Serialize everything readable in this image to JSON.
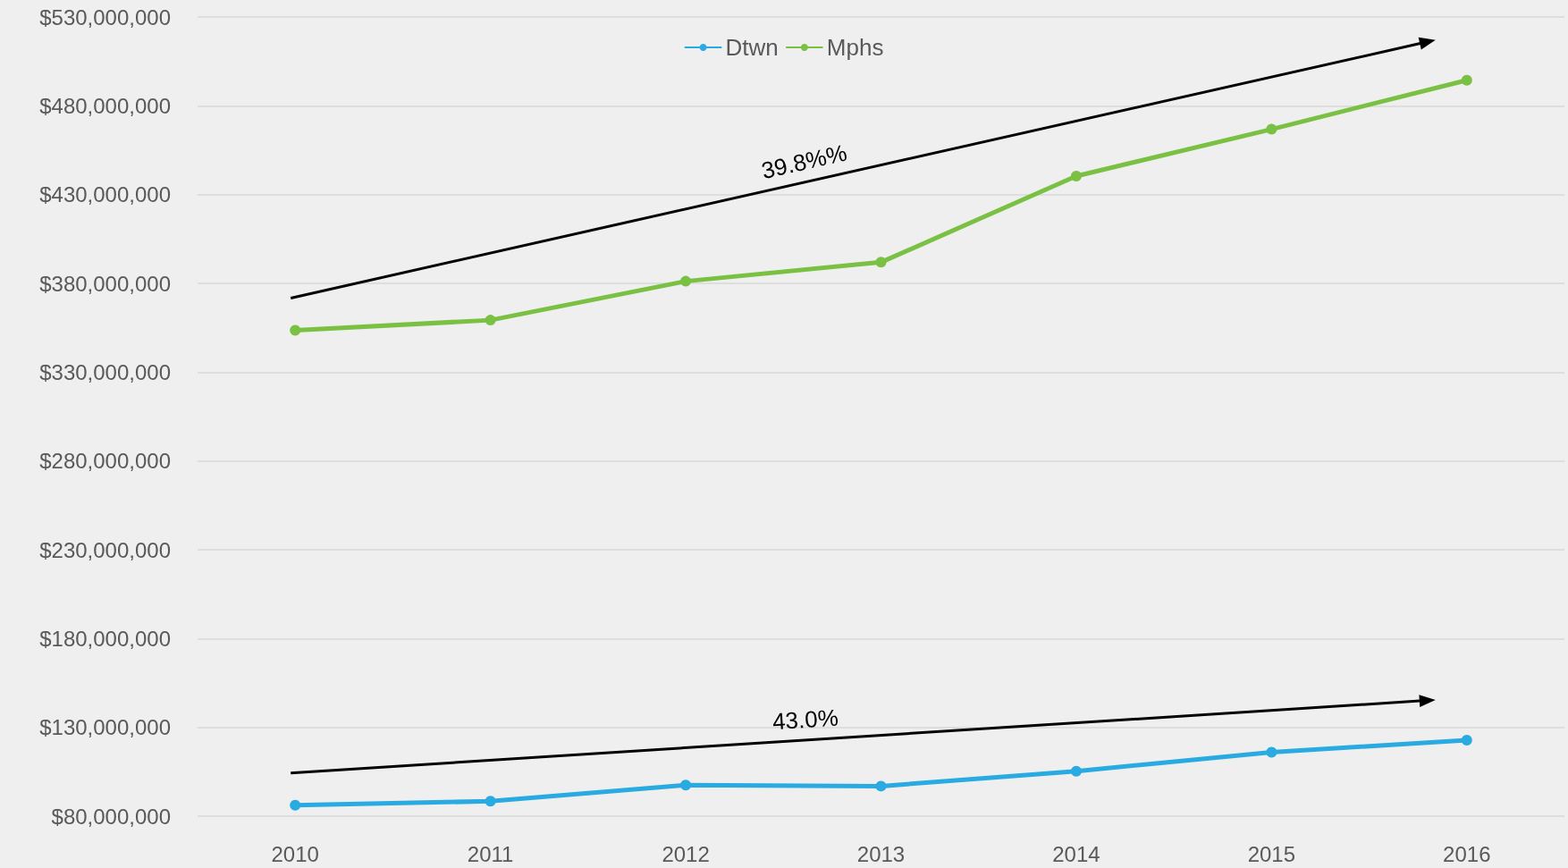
{
  "chart_data": {
    "type": "line",
    "categories": [
      "2010",
      "2011",
      "2012",
      "2013",
      "2014",
      "2015",
      "2016"
    ],
    "series": [
      {
        "name": "Dtwn",
        "color": "#29abe2",
        "values": [
          86200000,
          88400000,
          97500000,
          96900000,
          105300000,
          116000000,
          122800000
        ]
      },
      {
        "name": "Mphs",
        "color": "#7ac143",
        "values": [
          353600000,
          359300000,
          381200000,
          391900000,
          440400000,
          466800000,
          494400000
        ]
      }
    ],
    "annotations": [
      "43.0%",
      "39.8%%"
    ],
    "ylim": [
      80000000,
      530000000
    ],
    "yticks": [
      {
        "value": 80000000,
        "label": "$80,000,000"
      },
      {
        "value": 130000000,
        "label": "$130,000,000"
      },
      {
        "value": 180000000,
        "label": "$180,000,000"
      },
      {
        "value": 230000000,
        "label": "$230,000,000"
      },
      {
        "value": 280000000,
        "label": "$280,000,000"
      },
      {
        "value": 330000000,
        "label": "$330,000,000"
      },
      {
        "value": 380000000,
        "label": "$380,000,000"
      },
      {
        "value": 430000000,
        "label": "$430,000,000"
      },
      {
        "value": 480000000,
        "label": "$480,000,000"
      },
      {
        "value": 530000000,
        "label": "$530,000,000"
      }
    ],
    "grid": "y",
    "legend": "top",
    "marker": "circle",
    "line_style": "solid"
  }
}
